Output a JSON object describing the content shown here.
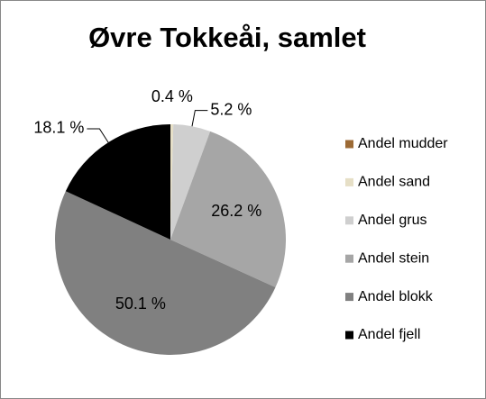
{
  "chart_data": {
    "type": "pie",
    "title": "Øvre Tokkeåi, samlet",
    "categories": [
      "Andel mudder",
      "Andel sand",
      "Andel grus",
      "Andel stein",
      "Andel blokk",
      "Andel fjell"
    ],
    "values": [
      0,
      0.4,
      5.2,
      26.2,
      50.1,
      18.1
    ],
    "value_labels": [
      null,
      "0.4 %",
      "5.2 %",
      "26.2 %",
      "50.1 %",
      "18.1 %"
    ],
    "colors": [
      "#9c6a35",
      "#e6dfc6",
      "#cfcfcf",
      "#a6a6a6",
      "#808080",
      "#000000"
    ]
  }
}
